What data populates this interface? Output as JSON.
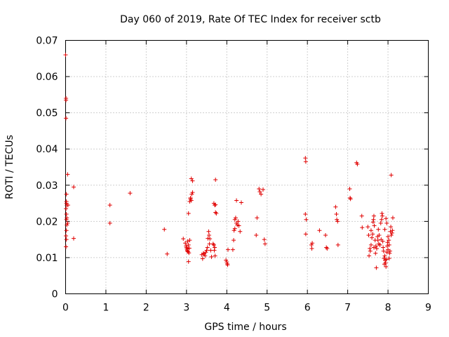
{
  "chart_data": {
    "type": "scatter",
    "title": "Day 060 of 2019, Rate Of TEC Index for receiver sctb",
    "xlabel": "GPS time / hours",
    "ylabel": "ROTI / TECUs",
    "xlim": [
      0,
      9
    ],
    "ylim": [
      0,
      0.07
    ],
    "xticks": [
      0,
      1,
      2,
      3,
      4,
      5,
      6,
      7,
      8,
      9
    ],
    "yticks": [
      0,
      0.01,
      0.02,
      0.03,
      0.04,
      0.05,
      0.06,
      0.07
    ],
    "xtick_labels": [
      "0",
      "1",
      "2",
      "3",
      "4",
      "5",
      "6",
      "7",
      "8",
      "9"
    ],
    "ytick_labels": [
      "0",
      "0.01",
      "0.02",
      "0.03",
      "0.04",
      "0.05",
      "0.06",
      "0.07"
    ],
    "grid": true,
    "marker": "+",
    "color": "#e00000",
    "series": [
      {
        "name": "ROTI",
        "points": [
          [
            0.0,
            0.066
          ],
          [
            0.01,
            0.054
          ],
          [
            0.01,
            0.0535
          ],
          [
            0.01,
            0.0485
          ],
          [
            0.02,
            0.0275
          ],
          [
            0.02,
            0.0255
          ],
          [
            0.02,
            0.025
          ],
          [
            0.03,
            0.0245
          ],
          [
            0.01,
            0.0235
          ],
          [
            0.02,
            0.022
          ],
          [
            0.03,
            0.021
          ],
          [
            0.02,
            0.0205
          ],
          [
            0.03,
            0.019
          ],
          [
            0.02,
            0.0175
          ],
          [
            0.01,
            0.016
          ],
          [
            0.02,
            0.015
          ],
          [
            0.01,
            0.013
          ],
          [
            0.05,
            0.033
          ],
          [
            0.06,
            0.0245
          ],
          [
            0.05,
            0.0195
          ],
          [
            0.2,
            0.0295
          ],
          [
            0.2,
            0.0153
          ],
          [
            1.1,
            0.0245
          ],
          [
            1.1,
            0.0195
          ],
          [
            1.6,
            0.0278
          ],
          [
            2.45,
            0.0178
          ],
          [
            2.52,
            0.011
          ],
          [
            2.92,
            0.0152
          ],
          [
            2.97,
            0.014
          ],
          [
            2.99,
            0.0132
          ],
          [
            3.0,
            0.0128
          ],
          [
            3.01,
            0.0124
          ],
          [
            3.02,
            0.0121
          ],
          [
            3.02,
            0.0118
          ],
          [
            3.03,
            0.0145
          ],
          [
            3.04,
            0.0116
          ],
          [
            3.05,
            0.0135
          ],
          [
            3.05,
            0.0089
          ],
          [
            3.06,
            0.0113
          ],
          [
            3.07,
            0.0126
          ],
          [
            3.08,
            0.0148
          ],
          [
            3.05,
            0.0222
          ],
          [
            3.08,
            0.0255
          ],
          [
            3.1,
            0.0262
          ],
          [
            3.12,
            0.0258
          ],
          [
            3.13,
            0.0275
          ],
          [
            3.15,
            0.028
          ],
          [
            3.12,
            0.0318
          ],
          [
            3.15,
            0.0312
          ],
          [
            3.1,
            0.0265
          ],
          [
            3.38,
            0.0108
          ],
          [
            3.4,
            0.0097
          ],
          [
            3.42,
            0.0112
          ],
          [
            3.44,
            0.011
          ],
          [
            3.46,
            0.0105
          ],
          [
            3.48,
            0.0115
          ],
          [
            3.5,
            0.012
          ],
          [
            3.52,
            0.0128
          ],
          [
            3.53,
            0.0153
          ],
          [
            3.55,
            0.0172
          ],
          [
            3.56,
            0.0162
          ],
          [
            3.57,
            0.0138
          ],
          [
            3.58,
            0.0152
          ],
          [
            3.6,
            0.012
          ],
          [
            3.62,
            0.0102
          ],
          [
            3.66,
            0.0138
          ],
          [
            3.68,
            0.0135
          ],
          [
            3.69,
            0.012
          ],
          [
            3.71,
            0.0105
          ],
          [
            3.68,
            0.025
          ],
          [
            3.7,
            0.0245
          ],
          [
            3.72,
            0.0246
          ],
          [
            3.72,
            0.0225
          ],
          [
            3.74,
            0.0222
          ],
          [
            3.72,
            0.0315
          ],
          [
            3.7,
            0.0128
          ],
          [
            3.98,
            0.0093
          ],
          [
            4.0,
            0.0088
          ],
          [
            4.01,
            0.0083
          ],
          [
            4.02,
            0.008
          ],
          [
            4.03,
            0.0122
          ],
          [
            4.15,
            0.0122
          ],
          [
            4.17,
            0.0148
          ],
          [
            4.18,
            0.0175
          ],
          [
            4.2,
            0.018
          ],
          [
            4.2,
            0.0205
          ],
          [
            4.22,
            0.021
          ],
          [
            4.24,
            0.0195
          ],
          [
            4.24,
            0.0258
          ],
          [
            4.26,
            0.019
          ],
          [
            4.28,
            0.02
          ],
          [
            4.3,
            0.0188
          ],
          [
            4.33,
            0.0172
          ],
          [
            4.36,
            0.0252
          ],
          [
            4.73,
            0.0162
          ],
          [
            4.75,
            0.021
          ],
          [
            4.8,
            0.029
          ],
          [
            4.82,
            0.0282
          ],
          [
            4.85,
            0.0275
          ],
          [
            4.9,
            0.0288
          ],
          [
            4.93,
            0.015
          ],
          [
            4.95,
            0.0138
          ],
          [
            5.95,
            0.0375
          ],
          [
            5.96,
            0.0365
          ],
          [
            5.95,
            0.022
          ],
          [
            5.97,
            0.0205
          ],
          [
            5.96,
            0.0165
          ],
          [
            6.1,
            0.0135
          ],
          [
            6.11,
            0.0125
          ],
          [
            6.12,
            0.014
          ],
          [
            6.3,
            0.0175
          ],
          [
            6.45,
            0.0162
          ],
          [
            6.47,
            0.0128
          ],
          [
            6.49,
            0.0125
          ],
          [
            6.7,
            0.024
          ],
          [
            6.72,
            0.022
          ],
          [
            6.73,
            0.0205
          ],
          [
            6.75,
            0.02
          ],
          [
            6.76,
            0.0135
          ],
          [
            7.05,
            0.029
          ],
          [
            7.06,
            0.0265
          ],
          [
            7.07,
            0.0262
          ],
          [
            7.22,
            0.0362
          ],
          [
            7.24,
            0.0358
          ],
          [
            7.35,
            0.0215
          ],
          [
            7.36,
            0.0183
          ],
          [
            7.5,
            0.0185
          ],
          [
            7.52,
            0.0162
          ],
          [
            7.53,
            0.0105
          ],
          [
            7.55,
            0.0125
          ],
          [
            7.56,
            0.0118
          ],
          [
            7.58,
            0.0135
          ],
          [
            7.58,
            0.0175
          ],
          [
            7.6,
            0.0155
          ],
          [
            7.62,
            0.0165
          ],
          [
            7.63,
            0.0198
          ],
          [
            7.64,
            0.0205
          ],
          [
            7.65,
            0.0215
          ],
          [
            7.66,
            0.0188
          ],
          [
            7.68,
            0.0148
          ],
          [
            7.7,
            0.0132
          ],
          [
            7.71,
            0.0072
          ],
          [
            7.72,
            0.0125
          ],
          [
            7.74,
            0.0158
          ],
          [
            7.75,
            0.0148
          ],
          [
            7.76,
            0.0178
          ],
          [
            7.78,
            0.0162
          ],
          [
            7.8,
            0.0135
          ],
          [
            7.82,
            0.0195
          ],
          [
            7.84,
            0.0205
          ],
          [
            7.85,
            0.0222
          ],
          [
            7.86,
            0.0215
          ],
          [
            7.87,
            0.0145
          ],
          [
            7.88,
            0.0128
          ],
          [
            7.89,
            0.0118
          ],
          [
            7.9,
            0.0098
          ],
          [
            7.91,
            0.0082
          ],
          [
            7.92,
            0.0105
          ],
          [
            7.93,
            0.0092
          ],
          [
            7.94,
            0.0085
          ],
          [
            7.95,
            0.0075
          ],
          [
            7.96,
            0.0095
          ],
          [
            7.97,
            0.0115
          ],
          [
            7.98,
            0.0132
          ],
          [
            7.99,
            0.0142
          ],
          [
            8.0,
            0.0122
          ],
          [
            8.0,
            0.0158
          ],
          [
            8.02,
            0.0148
          ],
          [
            8.03,
            0.0135
          ],
          [
            8.04,
            0.0112
          ],
          [
            8.05,
            0.0118
          ],
          [
            8.06,
            0.0172
          ],
          [
            8.07,
            0.0185
          ],
          [
            8.08,
            0.0162
          ],
          [
            8.1,
            0.0168
          ],
          [
            8.11,
            0.0175
          ],
          [
            8.12,
            0.021
          ],
          [
            8.08,
            0.0328
          ],
          [
            7.97,
            0.0195
          ],
          [
            7.92,
            0.0178
          ],
          [
            7.95,
            0.0208
          ],
          [
            7.83,
            0.015
          ],
          [
            7.77,
            0.0138
          ],
          [
            7.69,
            0.0112
          ],
          [
            7.65,
            0.0128
          ],
          [
            8.03,
            0.0098
          ]
        ]
      }
    ]
  }
}
